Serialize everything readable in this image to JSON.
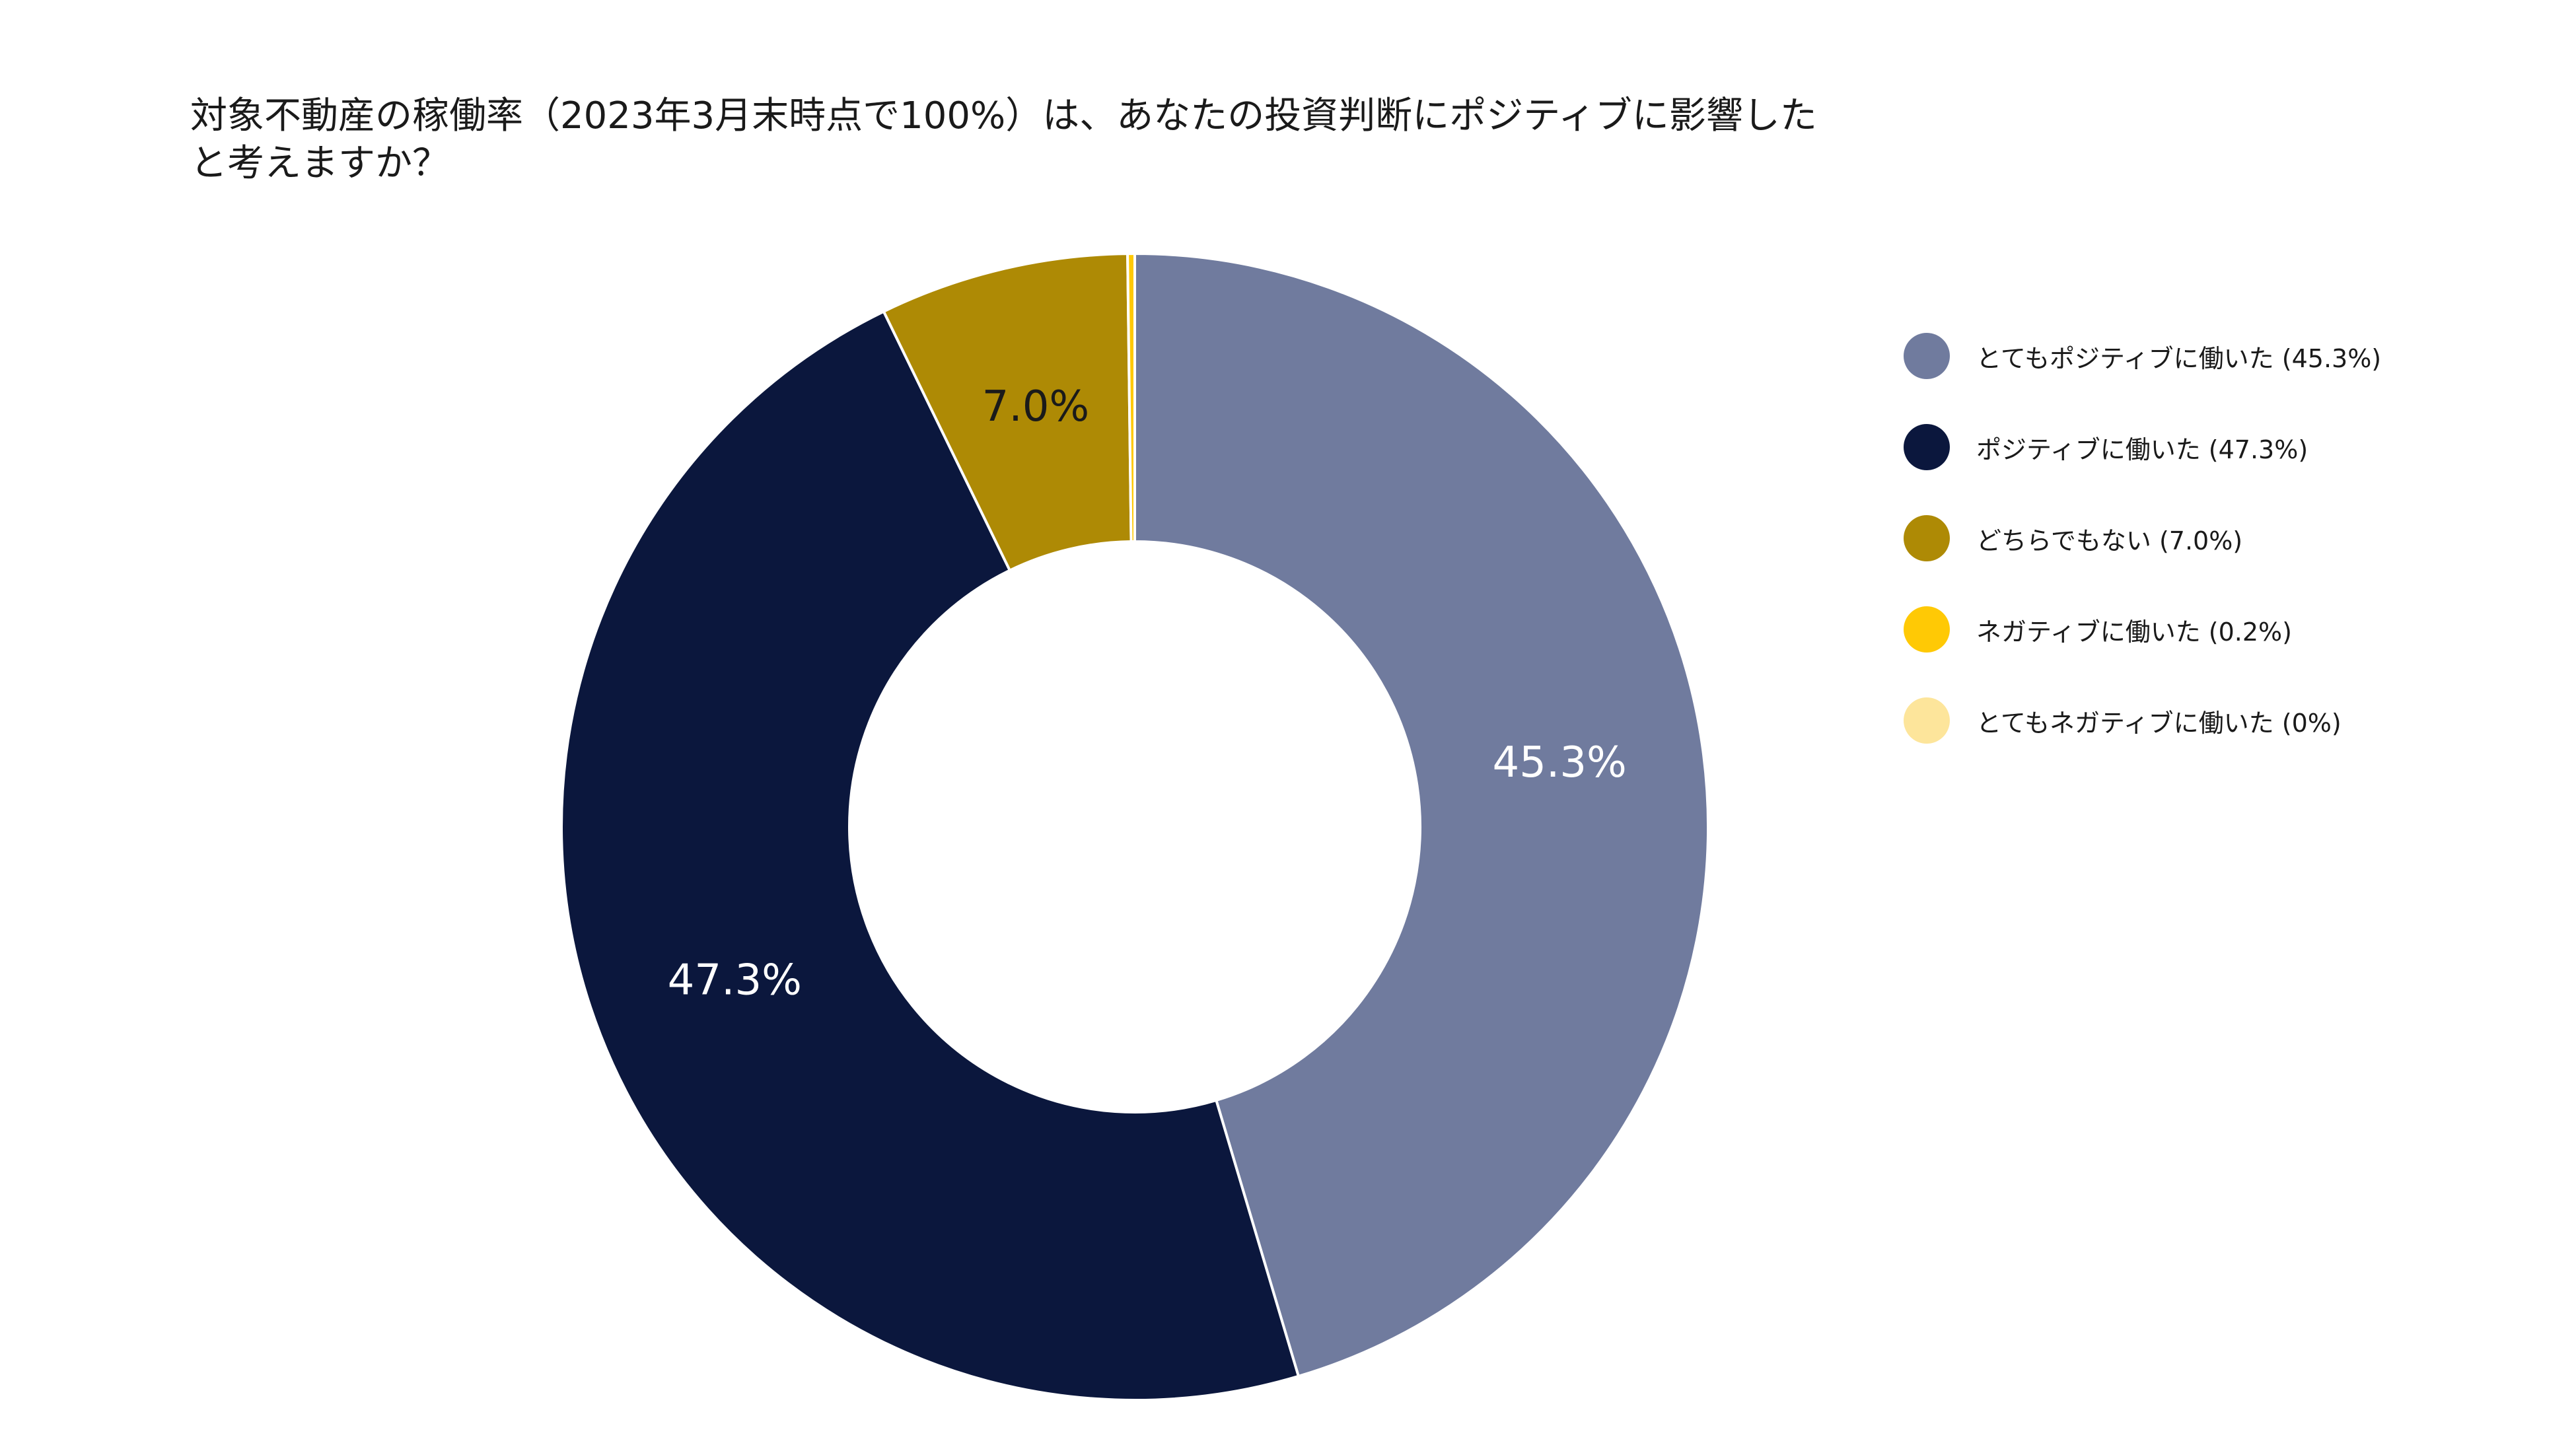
{
  "chart_data": {
    "type": "pie",
    "variant": "donut",
    "title": "対象不動産の稼働率（2023年3月末時点で100%）は、あなたの投資判断にポジティブに影響したと考えますか？",
    "categories": [
      "とてもポジティブに働いた",
      "ポジティブに働いた",
      "どちらでもない",
      "ネガティブに働いた",
      "とてもネガティブに働いた"
    ],
    "values": [
      45.3,
      47.3,
      7.0,
      0.2,
      0
    ],
    "unit": "%",
    "colors": [
      "#707b9e",
      "#0b173d",
      "#ae8a05",
      "#ffc905",
      "#fde59b"
    ],
    "data_labels": [
      "45.3%",
      "47.3%",
      "7.0%",
      "",
      ""
    ],
    "data_label_colors": [
      "#ffffff",
      "#ffffff",
      "#1a1a1a",
      "#1a1a1a",
      "#1a1a1a"
    ],
    "legend_position": "right",
    "legend_entries": [
      "とてもポジティブに働いた (45.3%)",
      "ポジティブに働いた (47.3%)",
      "どちらでもない (7.0%)",
      "ネガティブに働いた (0.2%)",
      "とてもネガティブに働いた (0%)"
    ],
    "start_angle": "12 o'clock",
    "direction": "clockwise",
    "slice_separator_color": "#ffffff"
  }
}
